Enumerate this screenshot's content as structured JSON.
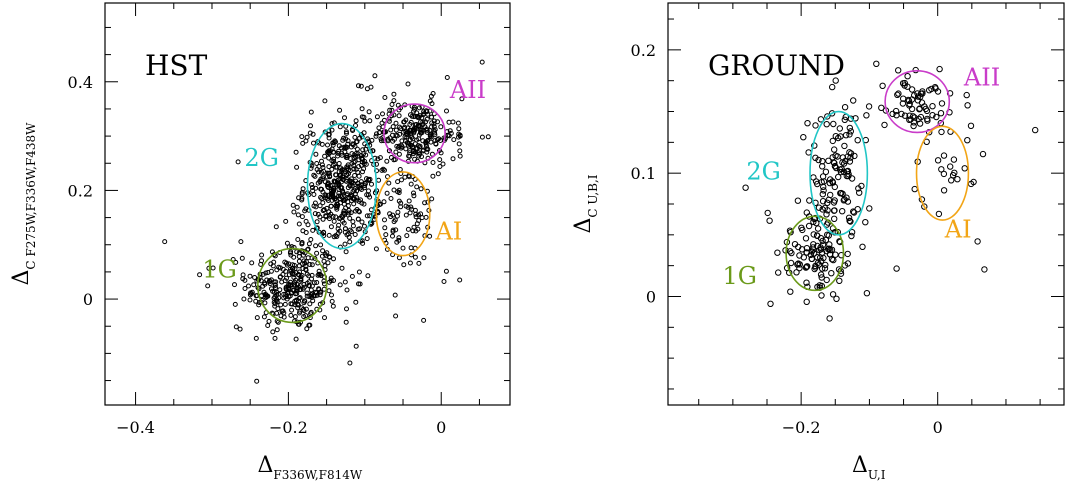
{
  "chart_data": [
    {
      "type": "scatter",
      "title": "HST",
      "xlabel": {
        "main": "Δ",
        "sub": "F336W,F814W"
      },
      "ylabel": {
        "main": "Δ",
        "sub": "C F275W,F336W,F438W"
      },
      "xlim": [
        -0.44,
        0.09
      ],
      "ylim": [
        -0.195,
        0.545
      ],
      "xticks": [
        -0.4,
        -0.2,
        0
      ],
      "xtick_labels": [
        "−0.4",
        "−0.2",
        "0"
      ],
      "yticks": [
        0,
        0.2,
        0.4
      ],
      "ytick_labels": [
        "0",
        "0.2",
        "0.4"
      ],
      "minor_x": 0.05,
      "minor_y": 0.05,
      "marker": {
        "shape": "open-circle",
        "color": "#000000",
        "size": "small"
      },
      "groups": [
        {
          "name": "1G",
          "color": "#6b9a1a",
          "center": [
            -0.195,
            0.025
          ],
          "semi_axes": [
            0.045,
            0.068
          ],
          "label_at": [
            -0.29,
            0.04
          ],
          "n_points": 320,
          "spread": [
            0.03,
            0.042
          ]
        },
        {
          "name": "2G",
          "color": "#21c6c6",
          "center": [
            -0.13,
            0.208
          ],
          "semi_axes": [
            0.045,
            0.115
          ],
          "label_at": [
            -0.235,
            0.245
          ],
          "n_points": 440,
          "spread": [
            0.025,
            0.055
          ]
        },
        {
          "name": "AII",
          "color": "#c93cc9",
          "center": [
            -0.035,
            0.305
          ],
          "semi_axes": [
            0.04,
            0.054
          ],
          "label_at": [
            0.035,
            0.37
          ],
          "n_points": 230,
          "spread": [
            0.026,
            0.03
          ]
        },
        {
          "name": "AI",
          "color": "#f2a516",
          "center": [
            -0.05,
            0.157
          ],
          "semi_axes": [
            0.035,
            0.077
          ],
          "label_at": [
            0.01,
            0.11
          ],
          "n_points": 80,
          "spread": [
            0.025,
            0.05
          ]
        }
      ],
      "scatter_background": 120
    },
    {
      "type": "scatter",
      "title": "GROUND",
      "xlabel": {
        "main": "Δ",
        "sub": "U,I"
      },
      "ylabel": {
        "main": "Δ",
        "sub": "C U,B,I"
      },
      "xlim": [
        -0.395,
        0.185
      ],
      "ylim": [
        -0.088,
        0.238
      ],
      "xticks": [
        -0.2,
        0
      ],
      "xtick_labels": [
        "−0.2",
        "0"
      ],
      "yticks": [
        0,
        0.1,
        0.2
      ],
      "ytick_labels": [
        "0",
        "0.1",
        "0.2"
      ],
      "minor_x": 0.05,
      "minor_y": 0.025,
      "marker": {
        "shape": "open-circle",
        "color": "#000000",
        "size": "medium"
      },
      "groups": [
        {
          "name": "1G",
          "color": "#6b9a1a",
          "center": [
            -0.18,
            0.035
          ],
          "semi_axes": [
            0.042,
            0.03
          ],
          "label_at": [
            -0.29,
            0.01
          ],
          "n_points": 110,
          "spread": [
            0.025,
            0.019
          ]
        },
        {
          "name": "2G",
          "color": "#21c6c6",
          "center": [
            -0.145,
            0.1
          ],
          "semi_axes": [
            0.042,
            0.05
          ],
          "label_at": [
            -0.255,
            0.095
          ],
          "n_points": 120,
          "spread": [
            0.022,
            0.03
          ]
        },
        {
          "name": "AII",
          "color": "#c93cc9",
          "center": [
            -0.03,
            0.158
          ],
          "semi_axes": [
            0.047,
            0.025
          ],
          "label_at": [
            0.065,
            0.171
          ],
          "n_points": 65,
          "spread": [
            0.022,
            0.014
          ]
        },
        {
          "name": "AI",
          "color": "#f2a516",
          "center": [
            0.007,
            0.1
          ],
          "semi_axes": [
            0.038,
            0.038
          ],
          "label_at": [
            0.03,
            0.048
          ],
          "n_points": 20,
          "spread": [
            0.02,
            0.02
          ]
        }
      ],
      "scatter_background": 28
    }
  ]
}
